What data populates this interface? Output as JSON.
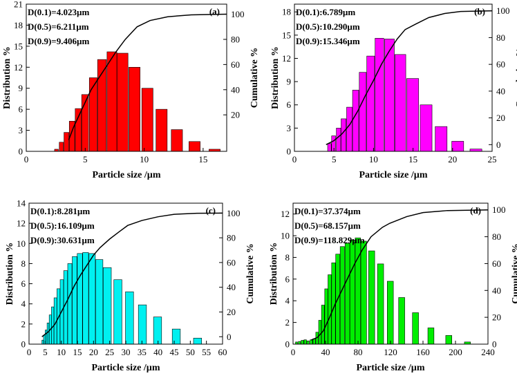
{
  "chart_data": [
    {
      "type": "bar",
      "label": "(a)",
      "color": "#ff0000",
      "stats": [
        "D(0.1)=4.023µm",
        "D(0.5)=6.211µm",
        "D(0.9)=9.406µm"
      ],
      "xlabel": "Particle size /µm",
      "ylabel": "Distribution %",
      "y2label": "Cumulative %",
      "xlim": [
        0,
        17
      ],
      "xticks": [
        0,
        5,
        10,
        15
      ],
      "ylim": [
        0,
        21
      ],
      "yticks": [
        0,
        3,
        6,
        9,
        12,
        15,
        18,
        21
      ],
      "y2lim": [
        -9,
        108
      ],
      "y2ticks": [
        20,
        40,
        60,
        80,
        100
      ],
      "bars": [
        {
          "x": 2.4,
          "w": 0.32,
          "h": 0.3
        },
        {
          "x": 2.8,
          "w": 0.36,
          "h": 1.3
        },
        {
          "x": 3.2,
          "w": 0.41,
          "h": 2.7
        },
        {
          "x": 3.65,
          "w": 0.46,
          "h": 4.3
        },
        {
          "x": 4.15,
          "w": 0.52,
          "h": 6.1
        },
        {
          "x": 4.7,
          "w": 0.58,
          "h": 8.1
        },
        {
          "x": 5.35,
          "w": 0.66,
          "h": 10.5
        },
        {
          "x": 6.05,
          "w": 0.74,
          "h": 13.1
        },
        {
          "x": 6.85,
          "w": 0.83,
          "h": 14.2
        },
        {
          "x": 7.7,
          "w": 0.93,
          "h": 14.0
        },
        {
          "x": 8.7,
          "w": 0.95,
          "h": 12.0
        },
        {
          "x": 9.8,
          "w": 0.95,
          "h": 9.0
        },
        {
          "x": 11.0,
          "w": 0.95,
          "h": 6.0
        },
        {
          "x": 12.3,
          "w": 0.95,
          "h": 3.1
        },
        {
          "x": 13.8,
          "w": 0.95,
          "h": 1.4
        },
        {
          "x": 15.5,
          "w": 0.95,
          "h": 0.3
        }
      ],
      "cumulative": [
        [
          3.6,
          0
        ],
        [
          4.0,
          10
        ],
        [
          4.5,
          20
        ],
        [
          5.0,
          30
        ],
        [
          5.5,
          40
        ],
        [
          6.2,
          50
        ],
        [
          6.9,
          60
        ],
        [
          7.6,
          70
        ],
        [
          8.4,
          80
        ],
        [
          9.4,
          90
        ],
        [
          10.5,
          95
        ],
        [
          12,
          98
        ],
        [
          14,
          99.5
        ],
        [
          17,
          100
        ]
      ]
    },
    {
      "type": "bar",
      "label": "(b)",
      "color": "#ff00ff",
      "stats": [
        "D(0.1):6.789µm",
        "D(0.5):10.290µm",
        "D(0.9):15.346µm"
      ],
      "xlabel": "Particle size /µm",
      "ylabel": "Distribution %",
      "y2label": "Cumulative %",
      "xlim": [
        0,
        25
      ],
      "xticks": [
        0,
        5,
        10,
        15,
        20,
        25
      ],
      "ylim": [
        0,
        19
      ],
      "yticks": [
        0,
        3,
        6,
        9,
        12,
        15,
        18
      ],
      "y2lim": [
        -5,
        105
      ],
      "y2ticks": [
        0,
        20,
        40,
        60,
        80,
        100
      ],
      "bars": [
        {
          "x": 4.2,
          "w": 0.45,
          "h": 1.0
        },
        {
          "x": 4.7,
          "w": 0.5,
          "h": 2.0
        },
        {
          "x": 5.3,
          "w": 0.56,
          "h": 3.0
        },
        {
          "x": 5.9,
          "w": 0.63,
          "h": 4.2
        },
        {
          "x": 6.6,
          "w": 0.7,
          "h": 5.7
        },
        {
          "x": 7.35,
          "w": 0.78,
          "h": 7.9
        },
        {
          "x": 8.2,
          "w": 0.88,
          "h": 10.2
        },
        {
          "x": 9.15,
          "w": 0.98,
          "h": 12.3
        },
        {
          "x": 10.2,
          "w": 1.1,
          "h": 14.6
        },
        {
          "x": 11.4,
          "w": 1.23,
          "h": 14.5
        },
        {
          "x": 12.7,
          "w": 1.38,
          "h": 12.5
        },
        {
          "x": 14.2,
          "w": 1.5,
          "h": 9.4
        },
        {
          "x": 15.9,
          "w": 1.5,
          "h": 6.0
        },
        {
          "x": 17.8,
          "w": 1.5,
          "h": 3.2
        },
        {
          "x": 19.9,
          "w": 1.5,
          "h": 1.3
        },
        {
          "x": 22.2,
          "w": 1.5,
          "h": 0.3
        }
      ],
      "cumulative": [
        [
          4,
          0
        ],
        [
          5,
          3
        ],
        [
          6,
          8
        ],
        [
          7,
          15
        ],
        [
          8,
          25
        ],
        [
          9,
          37
        ],
        [
          10,
          48
        ],
        [
          11,
          60
        ],
        [
          12,
          70
        ],
        [
          13,
          79
        ],
        [
          14,
          86
        ],
        [
          15.3,
          90
        ],
        [
          17,
          95
        ],
        [
          19,
          98
        ],
        [
          21,
          99.5
        ],
        [
          25,
          100
        ]
      ]
    },
    {
      "type": "bar",
      "label": "(c)",
      "color": "#00f0f0",
      "stats": [
        "D(0.1):8.281µm",
        "D(0.5):16.109µm",
        "D(0.9):30.631µm"
      ],
      "xlabel": "Particle size /µm",
      "ylabel": "Distribution %",
      "y2label": "Cumulative %",
      "xlim": [
        0,
        60
      ],
      "xticks": [
        0,
        5,
        10,
        15,
        20,
        25,
        30,
        35,
        40,
        45,
        50,
        55,
        60
      ],
      "ylim": [
        0,
        14
      ],
      "yticks": [
        0,
        2,
        4,
        6,
        8,
        10,
        12,
        14
      ],
      "y2lim": [
        -6,
        108
      ],
      "y2ticks": [
        0,
        20,
        40,
        60,
        80,
        100
      ],
      "bars": [
        {
          "x": 4.0,
          "w": 0.45,
          "h": 0.4
        },
        {
          "x": 4.5,
          "w": 0.5,
          "h": 0.9
        },
        {
          "x": 5.0,
          "w": 0.55,
          "h": 1.4
        },
        {
          "x": 5.6,
          "w": 0.6,
          "h": 2.1
        },
        {
          "x": 6.25,
          "w": 0.68,
          "h": 2.9
        },
        {
          "x": 6.95,
          "w": 0.76,
          "h": 3.7
        },
        {
          "x": 7.75,
          "w": 0.85,
          "h": 4.6
        },
        {
          "x": 8.65,
          "w": 0.95,
          "h": 5.5
        },
        {
          "x": 9.65,
          "w": 1.05,
          "h": 6.4
        },
        {
          "x": 10.75,
          "w": 1.18,
          "h": 7.3
        },
        {
          "x": 12.0,
          "w": 1.3,
          "h": 8.0
        },
        {
          "x": 13.4,
          "w": 1.45,
          "h": 8.7
        },
        {
          "x": 14.95,
          "w": 1.6,
          "h": 9.0
        },
        {
          "x": 16.65,
          "w": 1.8,
          "h": 9.1
        },
        {
          "x": 18.55,
          "w": 2.0,
          "h": 9.0
        },
        {
          "x": 20.65,
          "w": 2.25,
          "h": 8.4
        },
        {
          "x": 23.0,
          "w": 2.5,
          "h": 7.6
        },
        {
          "x": 26.3,
          "w": 2.5,
          "h": 6.4
        },
        {
          "x": 29.9,
          "w": 2.5,
          "h": 5.2
        },
        {
          "x": 33.9,
          "w": 2.5,
          "h": 3.9
        },
        {
          "x": 38.6,
          "w": 2.5,
          "h": 2.7
        },
        {
          "x": 44.4,
          "w": 2.5,
          "h": 1.5
        },
        {
          "x": 51.0,
          "w": 2.5,
          "h": 0.6
        }
      ],
      "cumulative": [
        [
          4,
          0
        ],
        [
          6,
          4
        ],
        [
          8,
          10
        ],
        [
          10,
          20
        ],
        [
          12,
          30
        ],
        [
          14,
          41
        ],
        [
          16,
          50
        ],
        [
          18,
          58
        ],
        [
          20,
          66
        ],
        [
          22,
          72
        ],
        [
          25,
          79
        ],
        [
          28,
          85
        ],
        [
          30.6,
          90
        ],
        [
          35,
          94
        ],
        [
          40,
          97
        ],
        [
          45,
          99
        ],
        [
          52,
          99.8
        ],
        [
          60,
          100
        ]
      ]
    },
    {
      "type": "bar",
      "label": "(d)",
      "color": "#00ee00",
      "stats": [
        "D(0.1)=37.374µm",
        "D(0.5)=68.157µm",
        "D(0.9)=118.829µm"
      ],
      "xlabel": "Particle size /µm",
      "ylabel": "Distribution %",
      "y2label": "Cumulative %",
      "xlim": [
        0,
        240
      ],
      "xticks": [
        0,
        40,
        80,
        120,
        160,
        200,
        240
      ],
      "ylim": [
        0,
        13
      ],
      "yticks": [
        0,
        2,
        4,
        6,
        8,
        10,
        12
      ],
      "y2lim": [
        0,
        105
      ],
      "y2ticks": [
        0,
        20,
        40,
        60,
        80,
        100
      ],
      "bars": [
        {
          "x": 3.0,
          "w": 2.5,
          "h": 0.2
        },
        {
          "x": 6.5,
          "w": 2.8,
          "h": 0.25
        },
        {
          "x": 10.0,
          "w": 3.0,
          "h": 0.35
        },
        {
          "x": 13.5,
          "w": 3.0,
          "h": 0.4
        },
        {
          "x": 17.0,
          "w": 3.0,
          "h": 0.3
        },
        {
          "x": 21.0,
          "w": 3.0,
          "h": 0.4
        },
        {
          "x": 24.5,
          "w": 3.0,
          "h": 0.5
        },
        {
          "x": 28.0,
          "w": 3.0,
          "h": 1.1
        },
        {
          "x": 31.5,
          "w": 3.2,
          "h": 2.2
        },
        {
          "x": 35.0,
          "w": 3.5,
          "h": 3.6
        },
        {
          "x": 39.0,
          "w": 3.8,
          "h": 5.1
        },
        {
          "x": 43.0,
          "w": 4.2,
          "h": 6.4
        },
        {
          "x": 47.5,
          "w": 4.6,
          "h": 7.5
        },
        {
          "x": 52.5,
          "w": 5.0,
          "h": 8.3
        },
        {
          "x": 58.0,
          "w": 5.4,
          "h": 9.0
        },
        {
          "x": 64.0,
          "w": 5.8,
          "h": 9.3
        },
        {
          "x": 70.0,
          "w": 6.2,
          "h": 9.6
        },
        {
          "x": 76.5,
          "w": 6.6,
          "h": 9.8
        },
        {
          "x": 83.5,
          "w": 7.0,
          "h": 9.5
        },
        {
          "x": 93.0,
          "w": 7.5,
          "h": 8.6
        },
        {
          "x": 104.0,
          "w": 7.5,
          "h": 7.4
        },
        {
          "x": 116.0,
          "w": 7.5,
          "h": 5.8
        },
        {
          "x": 130.0,
          "w": 7.5,
          "h": 4.3
        },
        {
          "x": 147.0,
          "w": 7.5,
          "h": 2.9
        },
        {
          "x": 166.0,
          "w": 7.5,
          "h": 1.5
        },
        {
          "x": 188.0,
          "w": 7.5,
          "h": 0.8
        },
        {
          "x": 211.0,
          "w": 7.5,
          "h": 0.2
        }
      ],
      "cumulative": [
        [
          22,
          3
        ],
        [
          30,
          5
        ],
        [
          37.4,
          10
        ],
        [
          45,
          20
        ],
        [
          52,
          30
        ],
        [
          60,
          40
        ],
        [
          68,
          50
        ],
        [
          76,
          60
        ],
        [
          85,
          70
        ],
        [
          96,
          80
        ],
        [
          110,
          87
        ],
        [
          119,
          90
        ],
        [
          140,
          95
        ],
        [
          160,
          98
        ],
        [
          190,
          99.5
        ],
        [
          240,
          100
        ]
      ]
    }
  ]
}
